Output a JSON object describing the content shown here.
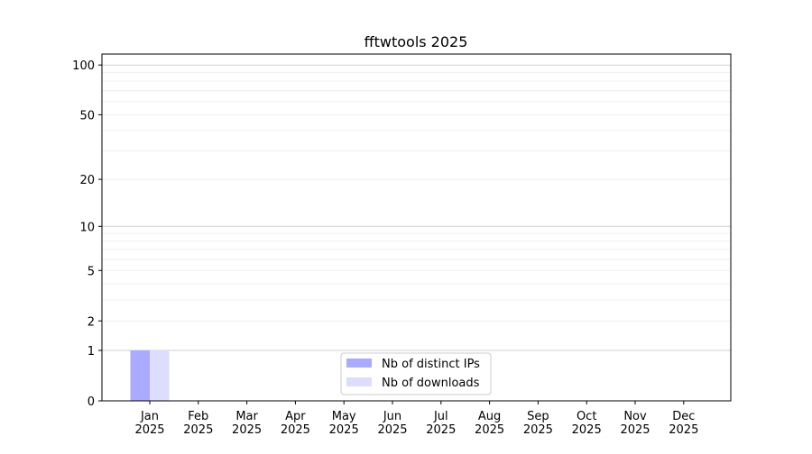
{
  "chart_data": {
    "type": "bar",
    "title": "fftwtools 2025",
    "xlabel": "",
    "ylabel": "",
    "yscale": "symlog (log10(1+y))",
    "ylim": [
      0,
      116
    ],
    "yticks": [
      0,
      1,
      2,
      5,
      10,
      20,
      50,
      100
    ],
    "grid": true,
    "categories": [
      "Jan\n2025",
      "Feb\n2025",
      "Mar\n2025",
      "Apr\n2025",
      "May\n2025",
      "Jun\n2025",
      "Jul\n2025",
      "Aug\n2025",
      "Sep\n2025",
      "Oct\n2025",
      "Nov\n2025",
      "Dec\n2025"
    ],
    "series": [
      {
        "name": "Nb of distinct IPs",
        "color": "#aaaaff",
        "values": [
          1,
          0,
          0,
          0,
          0,
          0,
          0,
          0,
          0,
          0,
          0,
          0
        ]
      },
      {
        "name": "Nb of downloads",
        "color": "#ddddff",
        "values": [
          1,
          0,
          0,
          0,
          0,
          0,
          0,
          0,
          0,
          0,
          0,
          0
        ]
      }
    ],
    "legend_position": "bottom-center"
  }
}
